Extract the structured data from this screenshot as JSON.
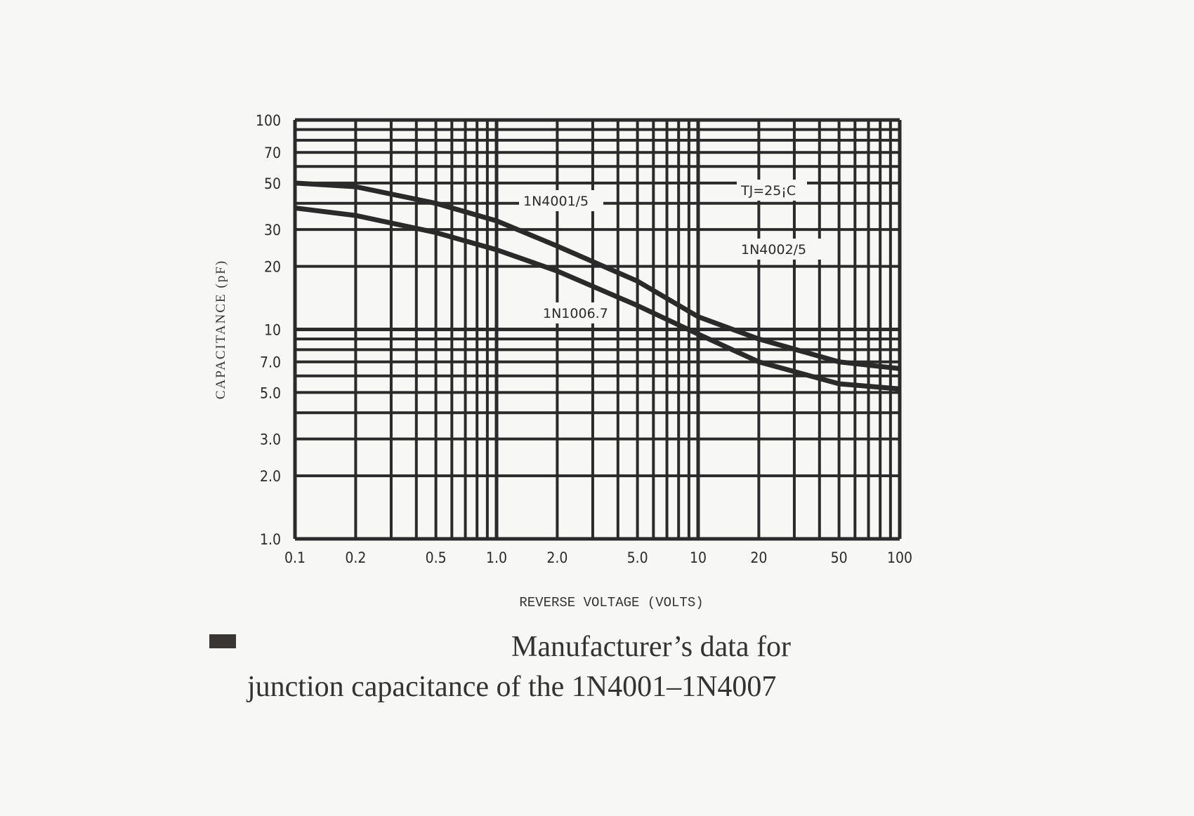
{
  "chart_data": {
    "type": "line",
    "xlabel": "REVERSE VOLTAGE (VOLTS)",
    "ylabel": "CAPACITANCE (pF)",
    "xscale": "log",
    "yscale": "log",
    "xlim": [
      0.1,
      100
    ],
    "ylim": [
      1,
      100
    ],
    "grid": true,
    "x_ticks": [
      "0.1",
      "0.2",
      "0.5",
      "1.0",
      "2.0",
      "5.0",
      "10",
      "20",
      "50",
      "100"
    ],
    "x_tick_values": [
      0.1,
      0.2,
      0.5,
      1,
      2,
      5,
      10,
      20,
      50,
      100
    ],
    "y_ticks": [
      "100",
      "70",
      "50",
      "30",
      "20",
      "10",
      "7.0",
      "5.0",
      "3.0",
      "2.0",
      "1.0"
    ],
    "y_tick_values": [
      100,
      70,
      50,
      30,
      20,
      10,
      7,
      5,
      3,
      2,
      1
    ],
    "annotations": [
      "TJ=25¡C",
      "1N4002/5"
    ],
    "series": [
      {
        "name": "1N4001/5",
        "x": [
          0.1,
          0.2,
          0.5,
          1,
          2,
          5,
          10,
          20,
          50,
          100
        ],
        "y": [
          50,
          48,
          40,
          33,
          25,
          17,
          11.5,
          9,
          7,
          6.5
        ]
      },
      {
        "name": "1N1006.7",
        "x": [
          0.1,
          0.2,
          0.5,
          1,
          2,
          5,
          10,
          20,
          50,
          100
        ],
        "y": [
          38,
          35,
          29,
          24,
          19,
          13,
          9.5,
          7,
          5.5,
          5.2
        ]
      }
    ],
    "line_color": "#2a2a2a"
  },
  "caption": {
    "line1": "Manufacturer’s data for",
    "line2": "junction capacitance of the 1N4001–1N4007"
  }
}
